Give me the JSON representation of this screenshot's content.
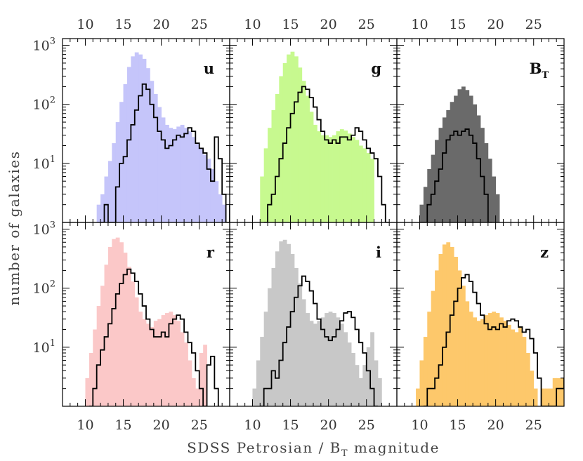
{
  "chart_data": {
    "type": "histogram-grid",
    "xlabel": "SDSS Petrosian / B",
    "xlabel_sub": "T",
    "xlabel_end": " magnitude",
    "ylabel": "number of galaxies",
    "y_scale": "log",
    "y_ticks": [
      {
        "base": "10",
        "exp": "1",
        "value": 10
      },
      {
        "base": "10",
        "exp": "2",
        "value": 100
      },
      {
        "base": "10",
        "exp": "3",
        "value": 1000
      }
    ],
    "ylim": [
      1,
      1300
    ],
    "xlim": [
      7,
      29
    ],
    "x_ticks": [
      "10",
      "15",
      "20",
      "25"
    ],
    "x_tick_values": [
      10,
      15,
      20,
      25
    ],
    "bin_width": 0.5,
    "panels": [
      {
        "band": "u",
        "band_sub": "",
        "fill_color": "#c5c5fa",
        "filled": {
          "start": 11.0,
          "counts": [
            1,
            2,
            3,
            6,
            11,
            22,
            50,
            110,
            220,
            430,
            650,
            760,
            700,
            590,
            410,
            250,
            150,
            90,
            60,
            45,
            40,
            38,
            42,
            45,
            40,
            35,
            28,
            22,
            18,
            14,
            12,
            8,
            5,
            3,
            2,
            1
          ]
        },
        "outline": {
          "start": 12.0,
          "counts": [
            1,
            2,
            1,
            1,
            4,
            10,
            13,
            25,
            45,
            80,
            140,
            220,
            180,
            100,
            60,
            35,
            25,
            18,
            20,
            25,
            30,
            28,
            32,
            40,
            35,
            22,
            18,
            15,
            8,
            5,
            28,
            12,
            3,
            1,
            2,
            2
          ]
        }
      },
      {
        "band": "g",
        "band_sub": "",
        "fill_color": "#c7f98f",
        "filled": {
          "start": 11.0,
          "counts": [
            6,
            18,
            40,
            80,
            150,
            300,
            500,
            700,
            780,
            650,
            420,
            250,
            140,
            75,
            45,
            35,
            30,
            30,
            28,
            30,
            35,
            38,
            36,
            32,
            28,
            25,
            20,
            18,
            15,
            12
          ]
        },
        "outline": {
          "start": 11.5,
          "counts": [
            1,
            2,
            3,
            6,
            12,
            22,
            40,
            70,
            110,
            160,
            200,
            180,
            130,
            90,
            55,
            35,
            25,
            22,
            25,
            22,
            28,
            28,
            25,
            30,
            40,
            35,
            25,
            18,
            15,
            12,
            6,
            2,
            1
          ]
        }
      },
      {
        "band": "B",
        "band_sub": "T",
        "fill_color": "#6a6a6a",
        "filled": {
          "start": 9.5,
          "counts": [
            1,
            2,
            4,
            8,
            14,
            25,
            40,
            60,
            80,
            110,
            140,
            180,
            200,
            175,
            140,
            100,
            65,
            40,
            22,
            12,
            6,
            3,
            1
          ]
        },
        "outline": {
          "start": 10.0,
          "counts": [
            1,
            1,
            2,
            3,
            5,
            8,
            15,
            25,
            30,
            35,
            30,
            35,
            38,
            30,
            22,
            12,
            6,
            3,
            1
          ]
        }
      },
      {
        "band": "r",
        "band_sub": "",
        "fill_color": "#fbc8c8",
        "filled": {
          "start": 10.0,
          "counts": [
            3,
            8,
            20,
            50,
            110,
            250,
            500,
            680,
            720,
            600,
            400,
            230,
            130,
            70,
            40,
            30,
            25,
            22,
            28,
            30,
            35,
            38,
            40,
            35,
            28,
            18,
            12,
            6,
            3,
            2,
            8,
            11
          ]
        },
        "outline": {
          "start": 10.5,
          "counts": [
            1,
            2,
            5,
            9,
            15,
            25,
            45,
            80,
            120,
            170,
            210,
            180,
            130,
            80,
            50,
            30,
            20,
            15,
            15,
            18,
            15,
            25,
            30,
            35,
            30,
            18,
            12,
            8,
            4,
            2,
            1,
            5,
            7,
            2
          ]
        }
      },
      {
        "band": "i",
        "band_sub": "",
        "fill_color": "#c8c8c8",
        "filled": {
          "start": 10.0,
          "counts": [
            2,
            6,
            15,
            40,
            100,
            220,
            420,
            620,
            660,
            560,
            380,
            220,
            120,
            65,
            38,
            28,
            25,
            28,
            32,
            38,
            40,
            38,
            32,
            25,
            18,
            12,
            8,
            5,
            3,
            5,
            10,
            18,
            6,
            3,
            1
          ]
        },
        "outline": {
          "start": 11.0,
          "counts": [
            1,
            2,
            2,
            4,
            3,
            6,
            12,
            22,
            40,
            70,
            110,
            160,
            130,
            90,
            55,
            30,
            20,
            15,
            13,
            15,
            20,
            28,
            38,
            40,
            32,
            20,
            12,
            8,
            4,
            2,
            1
          ]
        }
      },
      {
        "band": "z",
        "band_sub": "",
        "fill_color": "#fdc86b",
        "filled": {
          "start": 9.5,
          "counts": [
            2,
            6,
            15,
            40,
            90,
            200,
            380,
            550,
            600,
            500,
            340,
            200,
            110,
            60,
            40,
            32,
            28,
            30,
            35,
            38,
            40,
            38,
            32,
            28,
            24,
            20,
            18,
            22,
            15,
            8,
            4,
            2,
            1,
            2,
            2,
            2,
            3,
            3,
            3,
            2,
            1
          ]
        },
        "outline": {
          "start": 10.5,
          "counts": [
            1,
            2,
            2,
            3,
            5,
            10,
            18,
            35,
            60,
            100,
            150,
            170,
            130,
            85,
            55,
            35,
            25,
            20,
            22,
            20,
            25,
            22,
            28,
            30,
            28,
            22,
            18,
            20,
            14,
            8,
            3,
            1,
            1,
            1,
            1,
            2,
            2,
            3,
            2,
            3,
            2
          ]
        }
      }
    ]
  }
}
